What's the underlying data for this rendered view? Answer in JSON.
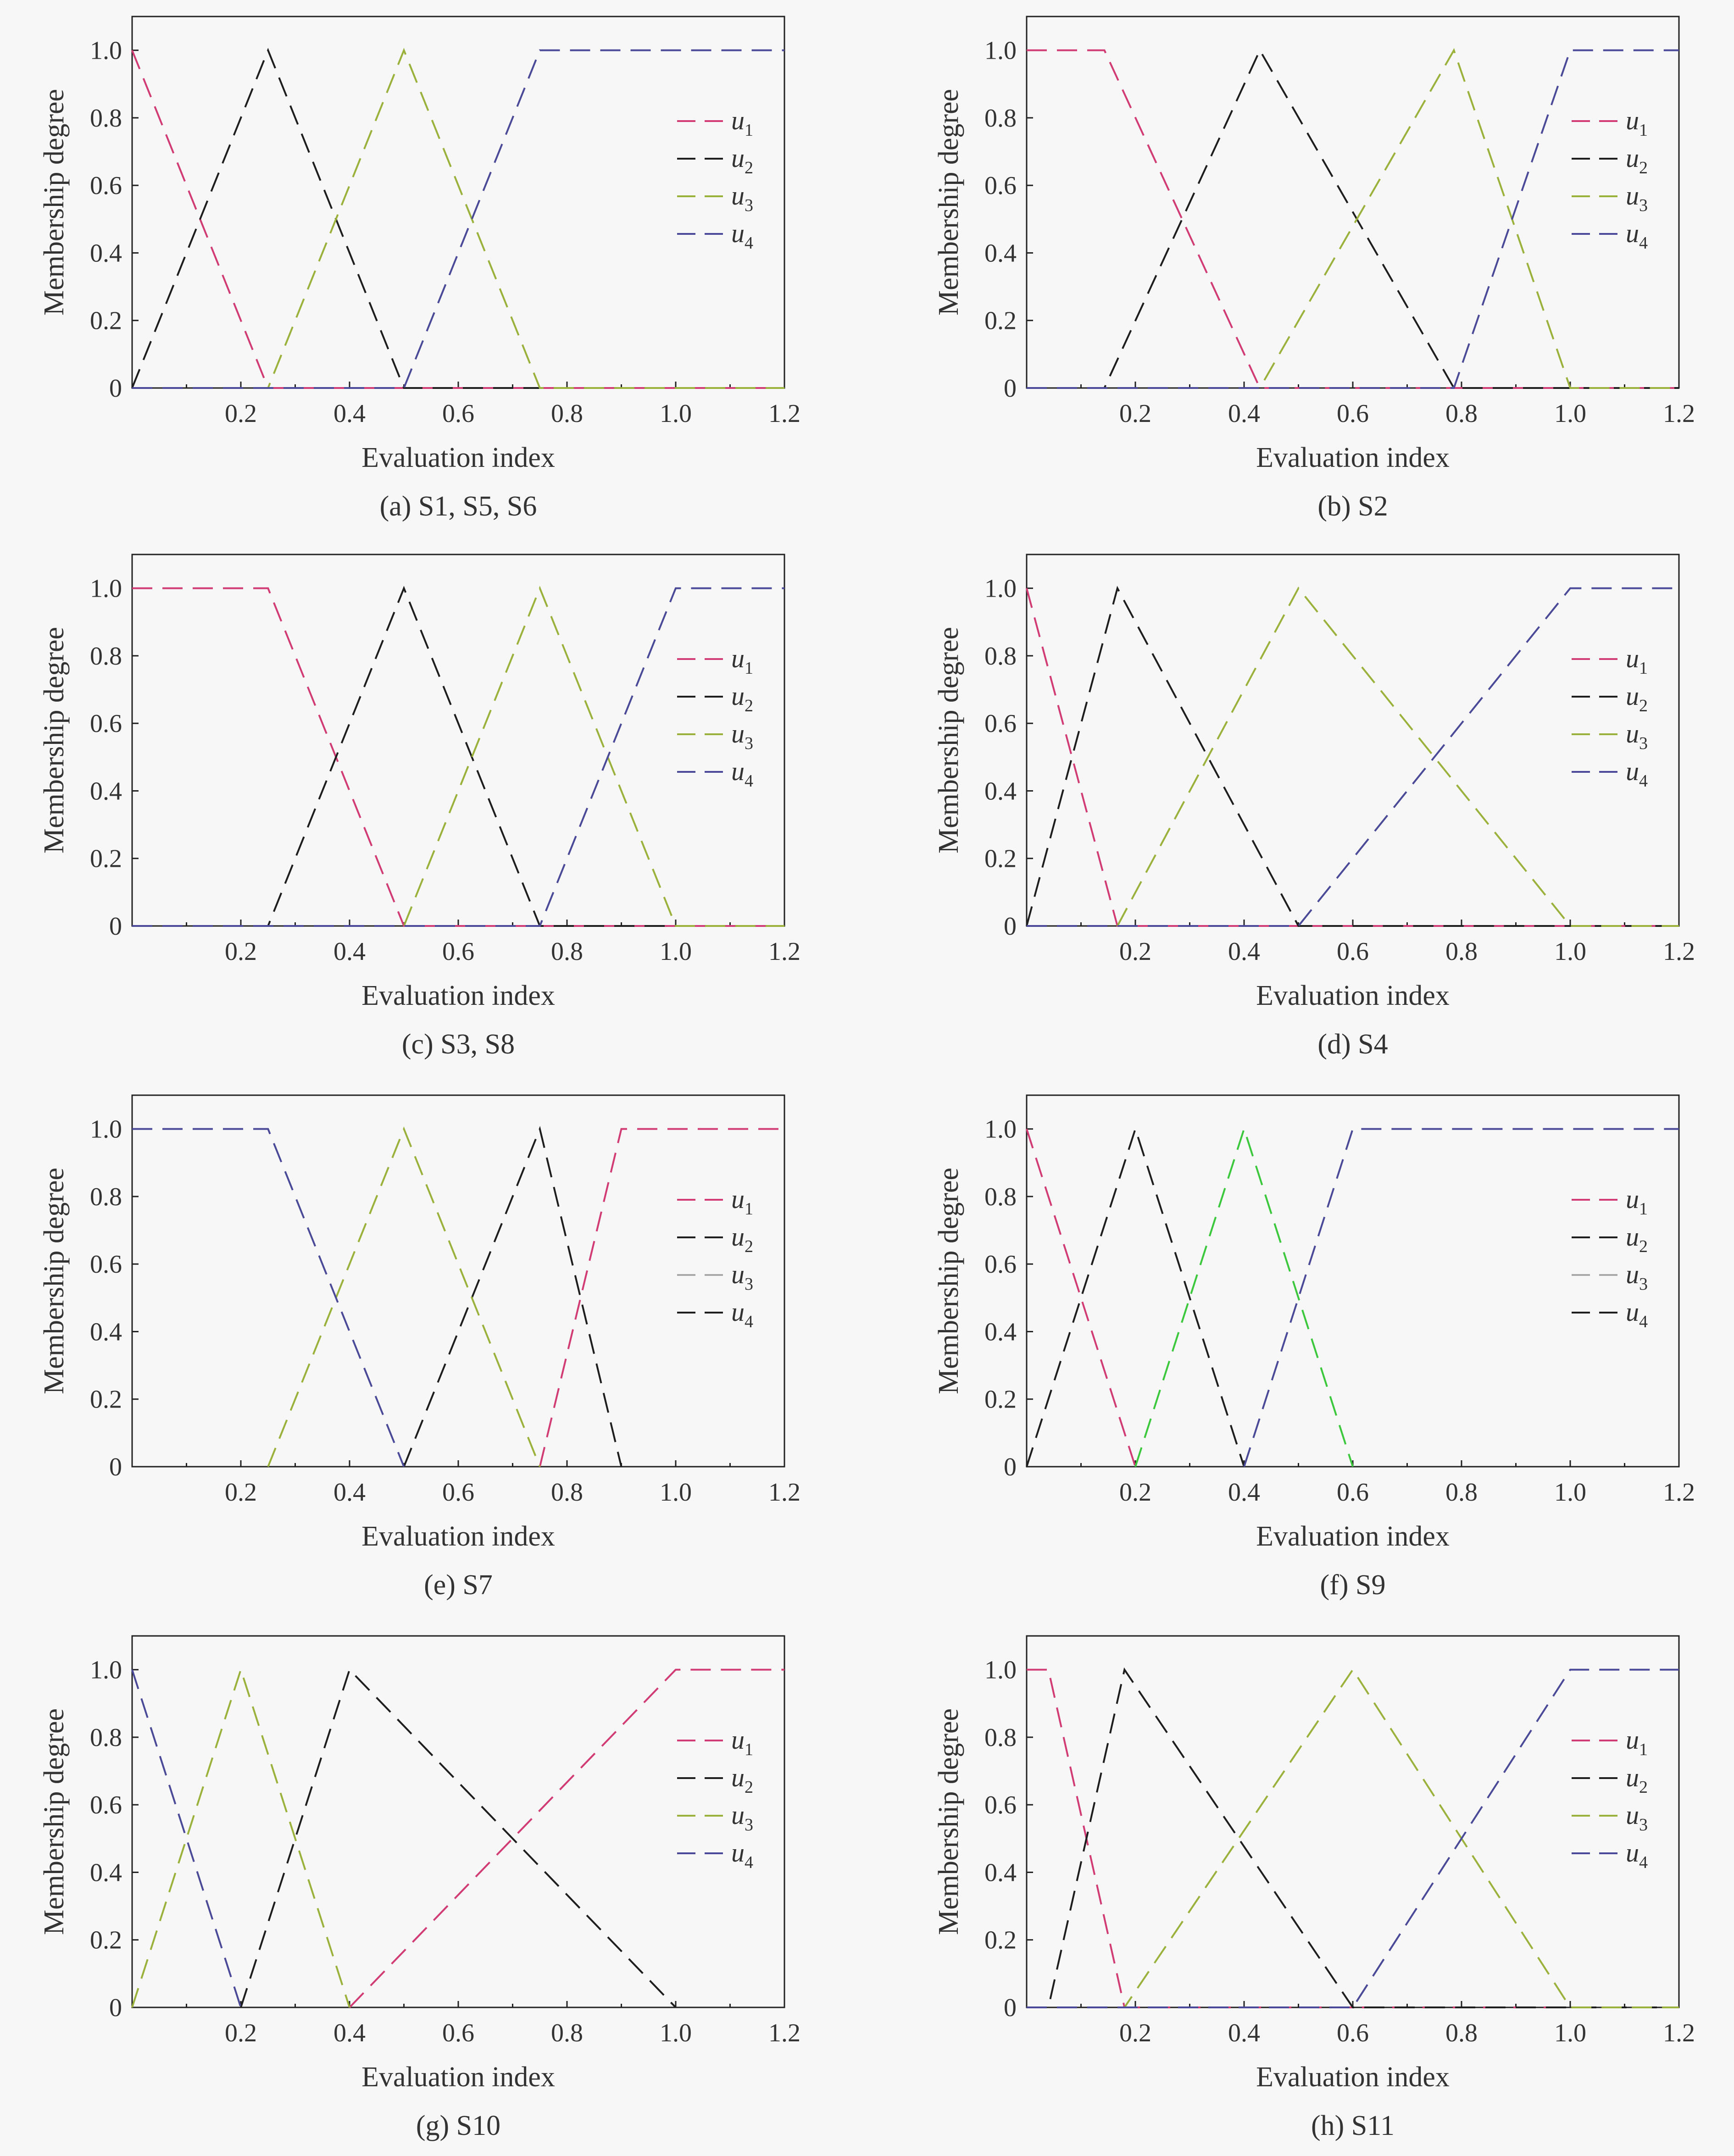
{
  "colors": {
    "u1": "#d23c74",
    "u2": "#1e1e1e",
    "u3": "#9ab23c",
    "u4": "#4a4a98",
    "gray": "#a8a8a8",
    "green": "#3cc83c",
    "axis": "#222222"
  },
  "axis_text": {
    "xlabel": "Evaluation index",
    "ylabel": "Membership degree",
    "xticks": [
      "0.2",
      "0.4",
      "0.6",
      "0.8",
      "1.0",
      "1.2"
    ],
    "yticks": [
      "0",
      "0.2",
      "0.4",
      "0.6",
      "0.8",
      "1.0"
    ]
  },
  "chart_data": [
    {
      "type": "line",
      "caption": "(a) S1, S5, S6",
      "xlabel": "Evaluation index",
      "ylabel": "Membership degree",
      "xlim": [
        0,
        1.2
      ],
      "ylim": [
        0,
        1.1
      ],
      "grid": false,
      "legend": "right",
      "series": [
        {
          "name": "u1",
          "color": "u1",
          "x": [
            0,
            0.25,
            1.2
          ],
          "y": [
            1,
            0,
            0
          ]
        },
        {
          "name": "u2",
          "color": "u2",
          "x": [
            0,
            0.25,
            0.5,
            1.2
          ],
          "y": [
            0,
            1,
            0,
            0
          ]
        },
        {
          "name": "u3",
          "color": "u3",
          "x": [
            0,
            0.25,
            0.5,
            0.75,
            1.2
          ],
          "y": [
            0,
            0,
            1,
            0,
            0
          ]
        },
        {
          "name": "u4",
          "color": "u4",
          "x": [
            0,
            0.5,
            0.75,
            1.2
          ],
          "y": [
            0,
            0,
            1,
            1
          ]
        }
      ]
    },
    {
      "type": "line",
      "caption": "(b) S2",
      "xlabel": "Evaluation index",
      "ylabel": "Membership degree",
      "xlim": [
        0,
        1.2
      ],
      "ylim": [
        0,
        1.1
      ],
      "grid": false,
      "legend": "right",
      "series": [
        {
          "name": "u1",
          "color": "u1",
          "x": [
            0,
            0.143,
            0.429,
            1.2
          ],
          "y": [
            1,
            1,
            0,
            0
          ]
        },
        {
          "name": "u2",
          "color": "u2",
          "x": [
            0,
            0.143,
            0.429,
            0.786,
            1.2
          ],
          "y": [
            0,
            0,
            1,
            0,
            0
          ]
        },
        {
          "name": "u3",
          "color": "u3",
          "x": [
            0,
            0.429,
            0.786,
            1.0,
            1.2
          ],
          "y": [
            0,
            0,
            1,
            0,
            0
          ]
        },
        {
          "name": "u4",
          "color": "u4",
          "x": [
            0,
            0.786,
            1.0,
            1.2
          ],
          "y": [
            0,
            0,
            1,
            1
          ]
        }
      ]
    },
    {
      "type": "line",
      "caption": "(c) S3, S8",
      "xlabel": "Evaluation index",
      "ylabel": "Membership degree",
      "xlim": [
        0,
        1.2
      ],
      "ylim": [
        0,
        1.1
      ],
      "grid": false,
      "legend": "right",
      "series": [
        {
          "name": "u1",
          "color": "u1",
          "x": [
            0,
            0.25,
            0.5,
            1.2
          ],
          "y": [
            1,
            1,
            0,
            0
          ]
        },
        {
          "name": "u2",
          "color": "u2",
          "x": [
            0,
            0.25,
            0.5,
            0.75,
            1.2
          ],
          "y": [
            0,
            0,
            1,
            0,
            0
          ]
        },
        {
          "name": "u3",
          "color": "u3",
          "x": [
            0,
            0.5,
            0.75,
            1.0,
            1.2
          ],
          "y": [
            0,
            0,
            1,
            0,
            0
          ]
        },
        {
          "name": "u4",
          "color": "u4",
          "x": [
            0,
            0.75,
            1.0,
            1.2
          ],
          "y": [
            0,
            0,
            1,
            1
          ]
        }
      ]
    },
    {
      "type": "line",
      "caption": "(d) S4",
      "xlabel": "Evaluation index",
      "ylabel": "Membership degree",
      "xlim": [
        0,
        1.2
      ],
      "ylim": [
        0,
        1.1
      ],
      "grid": false,
      "legend": "right",
      "series": [
        {
          "name": "u1",
          "color": "u1",
          "x": [
            0,
            0.167,
            1.2
          ],
          "y": [
            1,
            0,
            0
          ]
        },
        {
          "name": "u2",
          "color": "u2",
          "x": [
            0,
            0.167,
            0.5,
            1.2
          ],
          "y": [
            0,
            1,
            0,
            0
          ]
        },
        {
          "name": "u3",
          "color": "u3",
          "x": [
            0,
            0.167,
            0.5,
            1.0,
            1.2
          ],
          "y": [
            0,
            0,
            1,
            0,
            0
          ]
        },
        {
          "name": "u4",
          "color": "u4",
          "x": [
            0,
            0.5,
            1.0,
            1.2
          ],
          "y": [
            0,
            0,
            1,
            1
          ]
        }
      ]
    },
    {
      "type": "line",
      "caption": "(e) S7",
      "xlabel": "Evaluation index",
      "ylabel": "Membership degree",
      "xlim": [
        0,
        1.2
      ],
      "ylim": [
        0,
        1.1
      ],
      "grid": false,
      "legend": "right",
      "series": [
        {
          "name": "u1",
          "color": "u1",
          "x": [
            0.75,
            0.9,
            1.2
          ],
          "y": [
            0,
            1,
            1
          ]
        },
        {
          "name": "u2",
          "color": "u2",
          "x": [
            0.5,
            0.75,
            0.9
          ],
          "y": [
            0,
            1,
            0
          ]
        },
        {
          "name": "u3",
          "color": "u3",
          "x": [
            0.25,
            0.5,
            0.75
          ],
          "y": [
            0,
            1,
            0
          ]
        },
        {
          "name": "u4",
          "color": "u4",
          "x": [
            0,
            0.25,
            0.5
          ],
          "y": [
            1,
            1,
            0
          ]
        }
      ]
    },
    {
      "type": "line",
      "caption": "(f) S9",
      "xlabel": "Evaluation index",
      "ylabel": "Membership degree",
      "xlim": [
        0,
        1.2
      ],
      "ylim": [
        0,
        1.1
      ],
      "grid": false,
      "legend": "right",
      "series": [
        {
          "name": "u1",
          "color": "u1",
          "x": [
            0,
            0.2
          ],
          "y": [
            1,
            0
          ]
        },
        {
          "name": "u2",
          "color": "u2",
          "x": [
            0,
            0.2,
            0.4
          ],
          "y": [
            0,
            1,
            0
          ]
        },
        {
          "name": "u3",
          "color": "u3",
          "x": [
            0.2,
            0.4,
            0.6
          ],
          "y": [
            0,
            1,
            0
          ]
        },
        {
          "name": "u4",
          "color": "u4",
          "x": [
            0.4,
            0.6,
            1.2
          ],
          "y": [
            0,
            1,
            1
          ]
        }
      ]
    },
    {
      "type": "line",
      "caption": "(g) S10",
      "xlabel": "Evaluation index",
      "ylabel": "Membership degree",
      "xlim": [
        0,
        1.2
      ],
      "ylim": [
        0,
        1.1
      ],
      "grid": false,
      "legend": "right",
      "series": [
        {
          "name": "u1",
          "color": "u1",
          "x": [
            0.4,
            1.0,
            1.2
          ],
          "y": [
            0,
            1,
            1
          ]
        },
        {
          "name": "u2",
          "color": "u2",
          "x": [
            0.2,
            0.4,
            1.0
          ],
          "y": [
            0,
            1,
            0
          ]
        },
        {
          "name": "u3",
          "color": "u3",
          "x": [
            0,
            0.2,
            0.4
          ],
          "y": [
            0,
            1,
            0
          ]
        },
        {
          "name": "u4",
          "color": "u4",
          "x": [
            0,
            0.2
          ],
          "y": [
            1,
            0
          ]
        }
      ]
    },
    {
      "type": "line",
      "caption": "(h) S11",
      "xlabel": "Evaluation index",
      "ylabel": "Membership degree",
      "xlim": [
        0,
        1.2
      ],
      "ylim": [
        0,
        1.1
      ],
      "grid": false,
      "legend": "right",
      "series": [
        {
          "name": "u1",
          "color": "u1",
          "x": [
            0,
            0.04,
            0.18,
            1.2
          ],
          "y": [
            1,
            1,
            0,
            0
          ]
        },
        {
          "name": "u2",
          "color": "u2",
          "x": [
            0,
            0.04,
            0.18,
            0.6,
            1.2
          ],
          "y": [
            0,
            0,
            1,
            0,
            0
          ]
        },
        {
          "name": "u3",
          "color": "u3",
          "x": [
            0,
            0.18,
            0.6,
            1.0,
            1.2
          ],
          "y": [
            0,
            0,
            1,
            0,
            0
          ]
        },
        {
          "name": "u4",
          "color": "u4",
          "x": [
            0,
            0.6,
            1.0,
            1.2
          ],
          "y": [
            0,
            0,
            1,
            1
          ]
        }
      ]
    }
  ],
  "legend_entries": [
    {
      "base": "u",
      "sub": "1",
      "color": "u1"
    },
    {
      "base": "u",
      "sub": "2",
      "color": "u2"
    },
    {
      "base": "u",
      "sub": "3",
      "color": "u3"
    },
    {
      "base": "u",
      "sub": "4",
      "color": "u4"
    }
  ],
  "legend_overrides": {
    "4": [
      "u1",
      "u2",
      "gray",
      "u2"
    ],
    "5": [
      "u1",
      "u2",
      "gray",
      "u2"
    ]
  },
  "series_color_overrides": {
    "4": [
      "u1",
      "u2",
      "u3",
      "u4"
    ],
    "5": [
      "u1",
      "u2",
      "green",
      "u4"
    ]
  }
}
